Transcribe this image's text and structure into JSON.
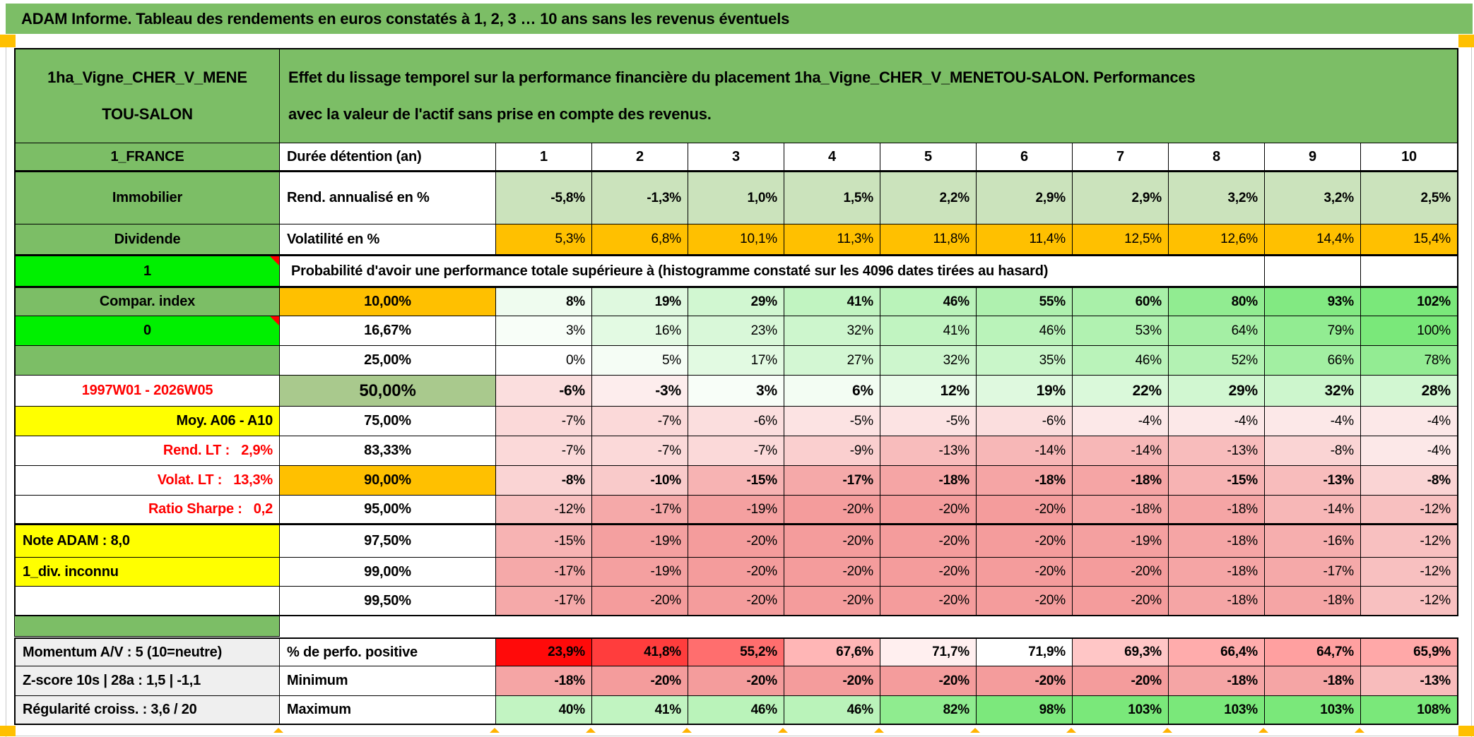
{
  "window": {
    "title": "ADAM Informe. Tableau des rendements en euros constatés à 1, 2, 3 … 10 ans sans les revenus éventuels"
  },
  "header": {
    "asset_name": "1ha_Vigne_CHER_V_MENETOU-SALON",
    "asset_name_lines": [
      "1ha_Vigne_CHER_V_MENE",
      "TOU-SALON"
    ],
    "description_lines": [
      "Effet du lissage temporel sur la performance financière du placement 1ha_Vigne_CHER_V_MENETOU-SALON. Performances",
      "avec la valeur de l'actif sans prise en compte des revenus."
    ]
  },
  "columns": {
    "left_header": "1_FRANCE",
    "duration_label": "Durée détention (an)",
    "years": [
      "1",
      "2",
      "3",
      "4",
      "5",
      "6",
      "7",
      "8",
      "9",
      "10"
    ]
  },
  "probability_note": "Probabilité d'avoir une performance totale supérieure à (histogramme constaté sur les 4096 dates tirées au hasard)",
  "rows": [
    {
      "left": {
        "text": "Immobilier",
        "bg": "green",
        "bold": true,
        "align": "center"
      },
      "label": {
        "text": "Rend. annualisé en %",
        "bold": true,
        "align": "left"
      },
      "cells": [
        "-5,8%",
        "-1,3%",
        "1,0%",
        "1,5%",
        "2,2%",
        "2,9%",
        "2,9%",
        "3,2%",
        "3,2%",
        "2,5%"
      ],
      "fill": "lightgreen",
      "cells_bold": true
    },
    {
      "left": {
        "text": "Dividende",
        "bg": "green",
        "bold": true,
        "align": "center"
      },
      "label": {
        "text": "Volatilité en %",
        "bold": true,
        "align": "left"
      },
      "cells": [
        "5,3%",
        "6,8%",
        "10,1%",
        "11,3%",
        "11,8%",
        "11,4%",
        "12,5%",
        "12,6%",
        "14,4%",
        "15,4%"
      ],
      "fill": "orange",
      "thick": true
    },
    {
      "type": "note",
      "left": {
        "text": "1",
        "bg": "lime",
        "bold": true,
        "align": "center",
        "marker": true
      },
      "thick": true
    },
    {
      "left": {
        "text": "Compar. index",
        "bg": "green",
        "bold": true,
        "align": "center"
      },
      "label": {
        "text": "10,00%",
        "bg": "orange",
        "bold": true,
        "align": "center"
      },
      "cells": [
        "8%",
        "19%",
        "29%",
        "41%",
        "46%",
        "55%",
        "60%",
        "80%",
        "93%",
        "102%"
      ],
      "fill": "scale",
      "cells_bold": true
    },
    {
      "left": {
        "text": "0",
        "bg": "lime",
        "bold": true,
        "align": "center",
        "marker": true
      },
      "label": {
        "text": "16,67%",
        "bold": true,
        "align": "center"
      },
      "cells": [
        "3%",
        "16%",
        "23%",
        "32%",
        "41%",
        "46%",
        "53%",
        "64%",
        "79%",
        "100%"
      ],
      "fill": "scale"
    },
    {
      "left": {
        "text": "",
        "bg": "green"
      },
      "label": {
        "text": "25,00%",
        "bold": true,
        "align": "center"
      },
      "cells": [
        "0%",
        "5%",
        "17%",
        "27%",
        "32%",
        "35%",
        "46%",
        "52%",
        "66%",
        "78%"
      ],
      "fill": "scale"
    },
    {
      "left": {
        "text": "1997W01 - 2026W05",
        "color": "red",
        "bold": true,
        "align": "center"
      },
      "label": {
        "text": "50,00%",
        "bg": "sage",
        "bold": true,
        "align": "center",
        "big": true
      },
      "cells": [
        "-6%",
        "-3%",
        "3%",
        "6%",
        "12%",
        "19%",
        "22%",
        "29%",
        "32%",
        "28%"
      ],
      "fill": "scale",
      "cells_bold": true,
      "cells_big": true
    },
    {
      "left": {
        "text": "Moy. A06 - A10",
        "bg": "yellow",
        "bold": true,
        "align": "right"
      },
      "label": {
        "text": "75,00%",
        "bold": true,
        "align": "center"
      },
      "cells": [
        "-7%",
        "-7%",
        "-6%",
        "-5%",
        "-5%",
        "-6%",
        "-4%",
        "-4%",
        "-4%",
        "-4%"
      ],
      "fill": "scale"
    },
    {
      "left": {
        "text": "Rend. LT :   2,9%",
        "color": "red",
        "bold": true,
        "align": "right"
      },
      "label": {
        "text": "83,33%",
        "bold": true,
        "align": "center"
      },
      "cells": [
        "-7%",
        "-7%",
        "-7%",
        "-9%",
        "-13%",
        "-14%",
        "-14%",
        "-13%",
        "-8%",
        "-4%"
      ],
      "fill": "scale"
    },
    {
      "left": {
        "text": "Volat. LT :   13,3%",
        "color": "red",
        "bold": true,
        "align": "right"
      },
      "label": {
        "text": "90,00%",
        "bg": "orange",
        "bold": true,
        "align": "center"
      },
      "cells": [
        "-8%",
        "-10%",
        "-15%",
        "-17%",
        "-18%",
        "-18%",
        "-18%",
        "-15%",
        "-13%",
        "-8%"
      ],
      "fill": "scale",
      "cells_bold": true
    },
    {
      "left": {
        "text": "Ratio Sharpe :   0,2",
        "color": "red",
        "bold": true,
        "align": "right"
      },
      "label": {
        "text": "95,00%",
        "bold": true,
        "align": "center"
      },
      "cells": [
        "-12%",
        "-17%",
        "-19%",
        "-20%",
        "-20%",
        "-20%",
        "-18%",
        "-18%",
        "-14%",
        "-12%"
      ],
      "fill": "scale",
      "thick": true
    },
    {
      "left": {
        "text": "Note ADAM : 8,0",
        "bg": "yellow",
        "bold": true,
        "align": "left"
      },
      "label": {
        "text": "97,50%",
        "bold": true,
        "align": "center"
      },
      "cells": [
        "-15%",
        "-19%",
        "-20%",
        "-20%",
        "-20%",
        "-20%",
        "-19%",
        "-18%",
        "-16%",
        "-12%"
      ],
      "fill": "scale"
    },
    {
      "left": {
        "text": "1_div. inconnu",
        "bg": "yellow",
        "bold": true,
        "align": "left"
      },
      "label": {
        "text": "99,00%",
        "bold": true,
        "align": "center"
      },
      "cells": [
        "-17%",
        "-19%",
        "-20%",
        "-20%",
        "-20%",
        "-20%",
        "-20%",
        "-18%",
        "-17%",
        "-12%"
      ],
      "fill": "scale"
    },
    {
      "left": {
        "text": ""
      },
      "label": {
        "text": "99,50%",
        "bold": true,
        "align": "center"
      },
      "cells": [
        "-17%",
        "-20%",
        "-20%",
        "-20%",
        "-20%",
        "-20%",
        "-20%",
        "-18%",
        "-18%",
        "-12%"
      ],
      "fill": "scale"
    }
  ],
  "bottom_rows": [
    {
      "left": {
        "text": "Momentum A/V : 5 (10=neutre)",
        "bg": "gray",
        "bold": true,
        "align": "left"
      },
      "label": {
        "text": "% de perfo. positive",
        "bold": true,
        "align": "left"
      },
      "cells": [
        "23,9%",
        "41,8%",
        "55,2%",
        "67,6%",
        "71,7%",
        "71,9%",
        "69,3%",
        "66,4%",
        "64,7%",
        "65,9%"
      ],
      "fill": "perfo",
      "cells_bold": true
    },
    {
      "left": {
        "text": "Z-score 10s | 28a : 1,5 | -1,1",
        "bg": "gray",
        "bold": true,
        "align": "left"
      },
      "label": {
        "text": "Minimum",
        "bold": true,
        "align": "left"
      },
      "cells": [
        "-18%",
        "-20%",
        "-20%",
        "-20%",
        "-20%",
        "-20%",
        "-20%",
        "-18%",
        "-18%",
        "-13%"
      ],
      "fill": "scale",
      "cells_bold": true
    },
    {
      "left": {
        "text": "Régularité croiss. : 3,6 / 20",
        "bg": "gray",
        "bold": true,
        "align": "left"
      },
      "label": {
        "text": "Maximum",
        "bold": true,
        "align": "left"
      },
      "cells": [
        "40%",
        "41%",
        "46%",
        "46%",
        "82%",
        "98%",
        "103%",
        "103%",
        "103%",
        "108%"
      ],
      "fill": "scale",
      "cells_bold": true
    }
  ],
  "theme": {
    "green": "#7CBE66",
    "sage": "#A9C98D",
    "lime": "#00F000",
    "orange": "#FFC000",
    "yellow": "#FFFF00",
    "gray": "#EFEFEF",
    "red_text": "#FF0000",
    "light_green_row": "#CBE3BC",
    "pos_scale_end": "#7AE87A",
    "neg_scale_end": "#F49C9C",
    "perfo_scale_end": "#FF0A0A",
    "marker_orange": "#FFC000"
  }
}
